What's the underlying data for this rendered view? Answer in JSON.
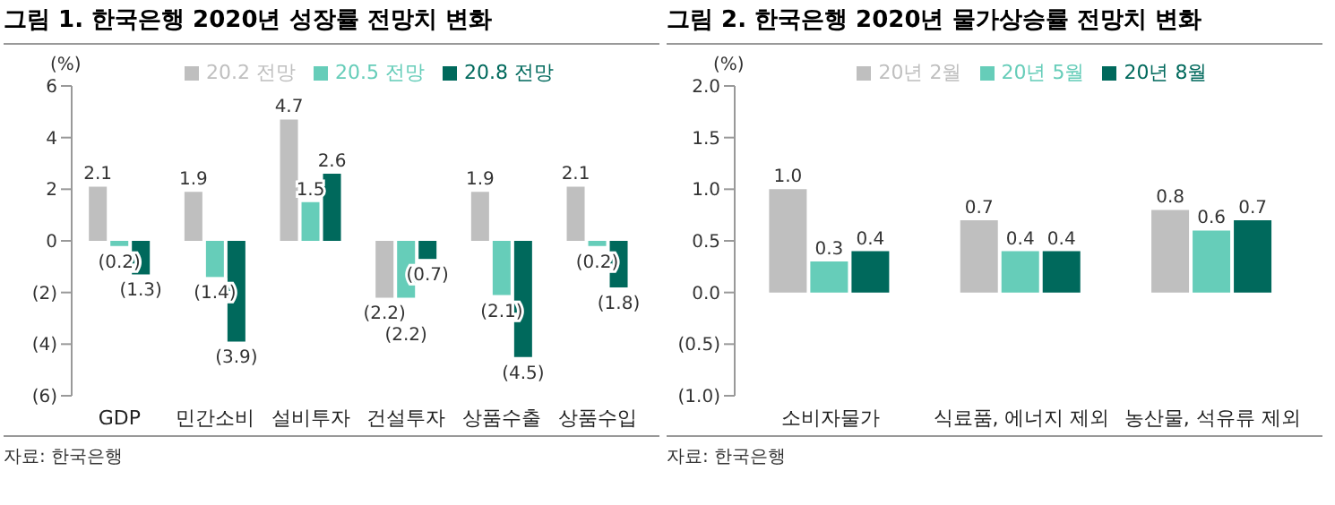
{
  "chart_data": [
    {
      "type": "bar",
      "title": "그림 1. 한국은행 2020년 성장률 전망치 변화",
      "ylabel": "(%)",
      "categories": [
        "GDP",
        "민간소비",
        "설비투자",
        "건설투자",
        "상품수출",
        "상품수입"
      ],
      "series": [
        {
          "name": "20.2 전망",
          "color": "#bfbfbf",
          "values": [
            2.1,
            1.9,
            4.7,
            -2.2,
            1.9,
            2.1
          ],
          "value_labels": [
            "2.1",
            "1.9",
            "4.7",
            "(2.2)",
            "1.9",
            "2.1"
          ]
        },
        {
          "name": "20.5 전망",
          "color": "#66cdb9",
          "values": [
            -0.2,
            -1.4,
            1.5,
            -2.2,
            -2.1,
            -0.2
          ],
          "value_labels": [
            "(0.2)",
            "(1.4)",
            "1.5",
            "(2.2)",
            "(2.1)",
            "(0.2)"
          ]
        },
        {
          "name": "20.8 전망",
          "color": "#00695c",
          "values": [
            -1.3,
            -3.9,
            2.6,
            -0.7,
            -4.5,
            -1.8
          ],
          "value_labels": [
            "(1.3)",
            "(3.9)",
            "2.6",
            "(0.7)",
            "(4.5)",
            "(1.8)"
          ]
        }
      ],
      "ylim": [
        -6,
        6
      ],
      "yticks": [
        6,
        4,
        2,
        0,
        {
          "value": -2,
          "label": "(2)"
        },
        {
          "value": -4,
          "label": "(4)"
        },
        {
          "value": -6,
          "label": "(6)"
        }
      ],
      "grid": false,
      "legend": "top",
      "annotations": [
        "자료: 한국은행"
      ]
    },
    {
      "type": "bar",
      "title": "그림 2. 한국은행 2020년 물가상승률 전망치 변화",
      "ylabel": "(%)",
      "categories": [
        "소비자물가",
        "식료품, 에너지 제외",
        "농산물, 석유류 제외"
      ],
      "series": [
        {
          "name": "20년 2월",
          "color": "#bfbfbf",
          "values": [
            1.0,
            0.7,
            0.8
          ],
          "value_labels": [
            "1.0",
            "0.7",
            "0.8"
          ]
        },
        {
          "name": "20년 5월",
          "color": "#66cdb9",
          "values": [
            0.3,
            0.4,
            0.6
          ],
          "value_labels": [
            "0.3",
            "0.4",
            "0.6"
          ]
        },
        {
          "name": "20년 8월",
          "color": "#00695c",
          "values": [
            0.4,
            0.4,
            0.7
          ],
          "value_labels": [
            "0.4",
            "0.4",
            "0.7"
          ]
        }
      ],
      "ylim": [
        -1,
        2
      ],
      "yticks": [
        {
          "value": 2,
          "label": "2.0"
        },
        {
          "value": 1.5,
          "label": "1.5"
        },
        {
          "value": 1,
          "label": "1.0"
        },
        {
          "value": 0.5,
          "label": "0.5"
        },
        {
          "value": 0,
          "label": "0.0"
        },
        {
          "value": -0.5,
          "label": "(0.5)"
        },
        {
          "value": -1,
          "label": "(1.0)"
        }
      ],
      "grid": false,
      "legend": "top",
      "annotations": [
        "자료: 한국은행"
      ]
    }
  ]
}
